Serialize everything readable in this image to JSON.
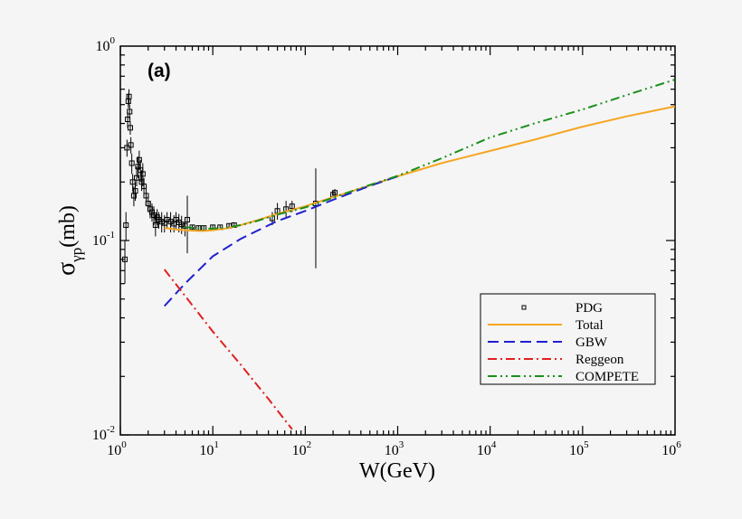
{
  "chart_data": {
    "type": "line",
    "panel_label": "(a)",
    "xlabel": "W(GeV)",
    "ylabel_main": "σ",
    "ylabel_sub": "γp",
    "ylabel_unit": "(mb)",
    "xscale": "log",
    "yscale": "log",
    "xlim": [
      1,
      1000000
    ],
    "ylim": [
      0.01,
      1
    ],
    "x_ticks": [
      {
        "base": "10",
        "exp": "0"
      },
      {
        "base": "10",
        "exp": "1"
      },
      {
        "base": "10",
        "exp": "2"
      },
      {
        "base": "10",
        "exp": "3"
      },
      {
        "base": "10",
        "exp": "4"
      },
      {
        "base": "10",
        "exp": "5"
      },
      {
        "base": "10",
        "exp": "6"
      }
    ],
    "y_ticks": [
      {
        "base": "10",
        "exp": "-2"
      },
      {
        "base": "10",
        "exp": "-1"
      },
      {
        "base": "10",
        "exp": "0"
      }
    ],
    "grid": false,
    "legend_placement": "lower-right",
    "series": [
      {
        "name": "PDG",
        "style": "open-square-errorbars",
        "color": "#000000",
        "points": [
          [
            1.12,
            0.08,
            0.06,
            0.1
          ],
          [
            1.15,
            0.12,
            0.1,
            0.14
          ],
          [
            1.18,
            0.3,
            0.27,
            0.33
          ],
          [
            1.2,
            0.42,
            0.38,
            0.46
          ],
          [
            1.22,
            0.52,
            0.48,
            0.57
          ],
          [
            1.24,
            0.55,
            0.5,
            0.6
          ],
          [
            1.26,
            0.46,
            0.42,
            0.5
          ],
          [
            1.28,
            0.38,
            0.35,
            0.41
          ],
          [
            1.3,
            0.31,
            0.28,
            0.34
          ],
          [
            1.33,
            0.25,
            0.22,
            0.28
          ],
          [
            1.36,
            0.2,
            0.18,
            0.22
          ],
          [
            1.4,
            0.17,
            0.15,
            0.19
          ],
          [
            1.45,
            0.18,
            0.16,
            0.2
          ],
          [
            1.5,
            0.21,
            0.19,
            0.24
          ],
          [
            1.55,
            0.24,
            0.21,
            0.27
          ],
          [
            1.6,
            0.26,
            0.23,
            0.29
          ],
          [
            1.65,
            0.23,
            0.2,
            0.26
          ],
          [
            1.7,
            0.2,
            0.18,
            0.23
          ],
          [
            1.75,
            0.22,
            0.19,
            0.25
          ],
          [
            1.8,
            0.19,
            0.17,
            0.21
          ],
          [
            1.9,
            0.17,
            0.15,
            0.19
          ],
          [
            2.0,
            0.155,
            0.14,
            0.17
          ],
          [
            2.1,
            0.145,
            0.13,
            0.16
          ],
          [
            2.2,
            0.14,
            0.125,
            0.155
          ],
          [
            2.3,
            0.135,
            0.12,
            0.15
          ],
          [
            2.4,
            0.12,
            0.105,
            0.135
          ],
          [
            2.5,
            0.132,
            0.12,
            0.145
          ],
          [
            2.6,
            0.128,
            0.115,
            0.14
          ],
          [
            2.8,
            0.125,
            0.11,
            0.14
          ],
          [
            3.0,
            0.123,
            0.11,
            0.135
          ],
          [
            3.2,
            0.128,
            0.115,
            0.14
          ],
          [
            3.5,
            0.125,
            0.11,
            0.14
          ],
          [
            3.8,
            0.122,
            0.11,
            0.135
          ],
          [
            4.0,
            0.128,
            0.115,
            0.14
          ],
          [
            4.3,
            0.124,
            0.11,
            0.137
          ],
          [
            4.6,
            0.121,
            0.108,
            0.134
          ],
          [
            5.0,
            0.119,
            0.105,
            0.13
          ],
          [
            5.3,
            0.128,
            0.086,
            0.17
          ],
          [
            6.0,
            0.117,
            0.114,
            0.12
          ],
          [
            7.0,
            0.116,
            0.113,
            0.119
          ],
          [
            8.0,
            0.116,
            0.113,
            0.119
          ],
          [
            10.0,
            0.117,
            0.114,
            0.12
          ],
          [
            12.0,
            0.117,
            0.114,
            0.12
          ],
          [
            15.0,
            0.119,
            0.116,
            0.122
          ],
          [
            17.0,
            0.12,
            0.117,
            0.123
          ],
          [
            44.0,
            0.13,
            0.12,
            0.14
          ],
          [
            50.0,
            0.142,
            0.128,
            0.156
          ],
          [
            62.0,
            0.145,
            0.13,
            0.16
          ],
          [
            72.0,
            0.15,
            0.14,
            0.16
          ],
          [
            130.0,
            0.155,
            0.072,
            0.235
          ],
          [
            200.0,
            0.172,
            0.165,
            0.18
          ],
          [
            209.0,
            0.176,
            0.168,
            0.184
          ]
        ]
      },
      {
        "name": "Total",
        "style": "solid",
        "color": "#f5a623",
        "x": [
          3,
          4,
          5,
          7,
          8,
          10,
          15,
          20,
          30,
          50,
          100,
          200,
          500,
          1000,
          3000,
          10000,
          30000,
          100000,
          300000,
          1000000
        ],
        "y": [
          0.116,
          0.114,
          0.113,
          0.112,
          0.112,
          0.113,
          0.116,
          0.12,
          0.127,
          0.137,
          0.15,
          0.167,
          0.192,
          0.214,
          0.25,
          0.289,
          0.33,
          0.385,
          0.435,
          0.49
        ]
      },
      {
        "name": "GBW",
        "style": "dashed",
        "color": "#1f1fd0",
        "x": [
          3,
          5,
          10,
          20,
          30,
          50,
          100,
          200,
          500,
          1000
        ],
        "y": [
          0.046,
          0.06,
          0.083,
          0.102,
          0.112,
          0.126,
          0.142,
          0.162,
          0.191,
          0.214
        ]
      },
      {
        "name": "Reggeon",
        "style": "dash-dot",
        "color": "#e02020",
        "x": [
          3,
          5,
          10,
          20,
          40,
          72
        ],
        "y": [
          0.071,
          0.052,
          0.034,
          0.023,
          0.0153,
          0.0107
        ]
      },
      {
        "name": "COMPETE",
        "style": "dash-dot-dot",
        "color": "#1a8f1a",
        "x": [
          5,
          8,
          10,
          15,
          20,
          30,
          50,
          100,
          200,
          500,
          1000,
          3000,
          10000,
          30000,
          100000,
          300000,
          1000000
        ],
        "y": [
          0.117,
          0.115,
          0.115,
          0.117,
          0.12,
          0.126,
          0.136,
          0.148,
          0.166,
          0.193,
          0.215,
          0.265,
          0.339,
          0.4,
          0.472,
          0.56,
          0.673
        ]
      }
    ]
  }
}
